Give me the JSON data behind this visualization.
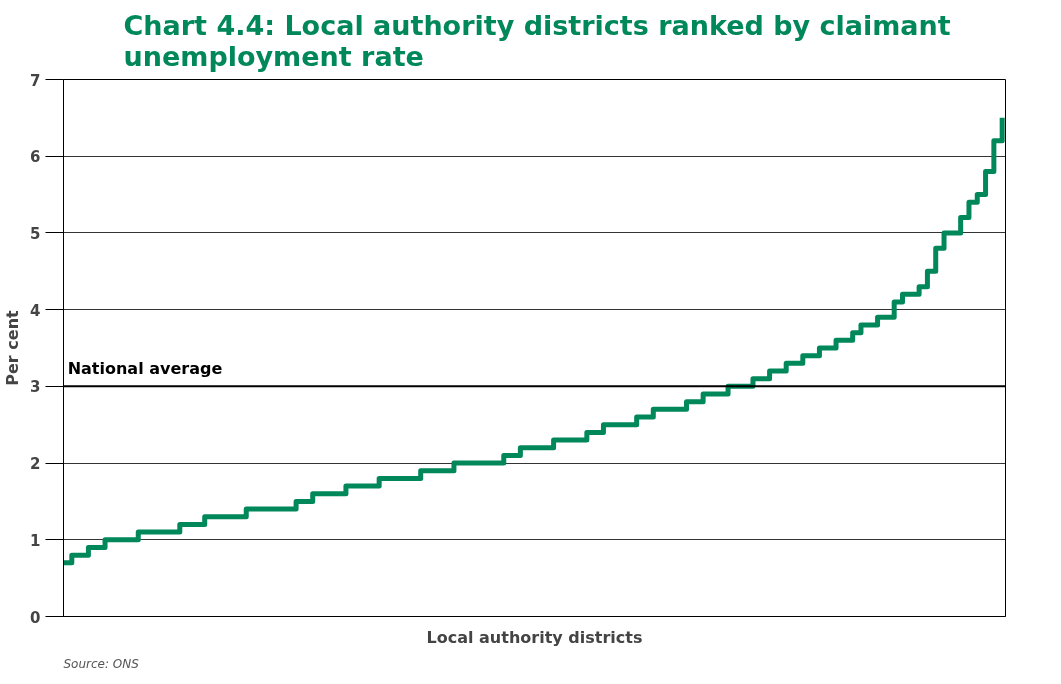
{
  "chart_data": {
    "type": "step",
    "title": "Chart 4.4: Local authority districts ranked by claimant unemployment rate",
    "xlabel": "Local authority districts",
    "ylabel": "Per cent",
    "categories": [
      null,
      null,
      null,
      null,
      null,
      null,
      null,
      null,
      null,
      null,
      null,
      null,
      null,
      null,
      null,
      null,
      null,
      null,
      null,
      null,
      null,
      null,
      null,
      null,
      null,
      null,
      null,
      null,
      null,
      null,
      null,
      null,
      null,
      null,
      null,
      null,
      null,
      null,
      null,
      null,
      null,
      null,
      null,
      null,
      null,
      null,
      null,
      null,
      null,
      null,
      null,
      null,
      null,
      null,
      null,
      null,
      null,
      null,
      null,
      null,
      null,
      null,
      null,
      null,
      null,
      null,
      null,
      null,
      null,
      null,
      null,
      null,
      null,
      null,
      null,
      null,
      null,
      null,
      null,
      null,
      null,
      null,
      null,
      null,
      null,
      null,
      null,
      null,
      null,
      null,
      null,
      null,
      null,
      null,
      null,
      null,
      null,
      null,
      null,
      null,
      null,
      null,
      null,
      null,
      null,
      null,
      null,
      null,
      null,
      null,
      null,
      null,
      null,
      null
    ],
    "series": [
      {
        "color": "#00875a",
        "values": [
          0.7,
          0.8,
          0.8,
          0.9,
          0.9,
          1.0,
          1.0,
          1.0,
          1.0,
          1.1,
          1.1,
          1.1,
          1.1,
          1.1,
          1.2,
          1.2,
          1.2,
          1.3,
          1.3,
          1.3,
          1.3,
          1.3,
          1.4,
          1.4,
          1.4,
          1.4,
          1.4,
          1.4,
          1.5,
          1.5,
          1.6,
          1.6,
          1.6,
          1.6,
          1.7,
          1.7,
          1.7,
          1.7,
          1.8,
          1.8,
          1.8,
          1.8,
          1.8,
          1.9,
          1.9,
          1.9,
          1.9,
          2.0,
          2.0,
          2.0,
          2.0,
          2.0,
          2.0,
          2.1,
          2.1,
          2.2,
          2.2,
          2.2,
          2.2,
          2.3,
          2.3,
          2.3,
          2.3,
          2.4,
          2.4,
          2.5,
          2.5,
          2.5,
          2.5,
          2.6,
          2.6,
          2.7,
          2.7,
          2.7,
          2.7,
          2.8,
          2.8,
          2.9,
          2.9,
          2.9,
          3.0,
          3.0,
          3.0,
          3.1,
          3.1,
          3.2,
          3.2,
          3.3,
          3.3,
          3.4,
          3.4,
          3.5,
          3.5,
          3.6,
          3.6,
          3.7,
          3.8,
          3.8,
          3.9,
          3.9,
          4.1,
          4.2,
          4.2,
          4.3,
          4.5,
          4.8,
          5.0,
          5.0,
          5.2,
          5.4,
          5.5,
          5.8,
          6.2,
          6.5
        ]
      }
    ],
    "ylim": [
      0,
      7
    ],
    "yticks": [
      0,
      1,
      2,
      3,
      4,
      5,
      6,
      7
    ],
    "grid": "y",
    "tick_labels": "y",
    "ref_lines": [
      {
        "axis": "y",
        "value": 3,
        "label": "National average",
        "color": "#000000"
      }
    ],
    "annotations": [
      "Source: ONS"
    ]
  }
}
